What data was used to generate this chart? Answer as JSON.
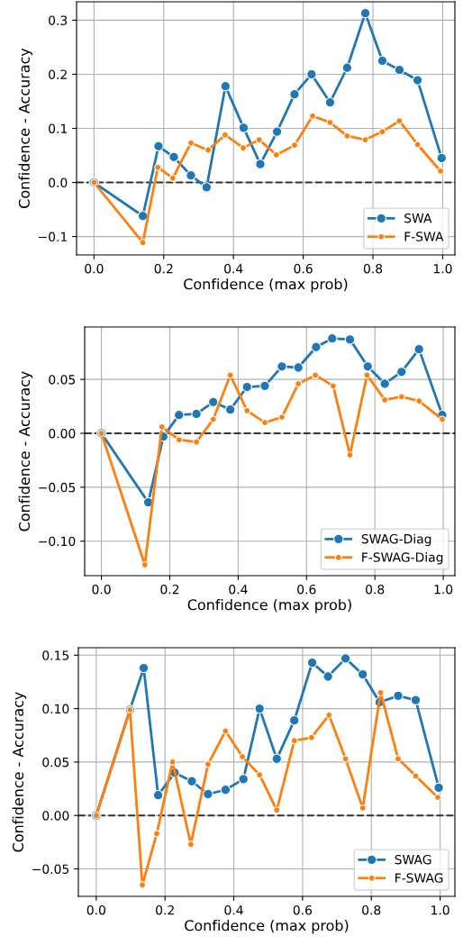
{
  "chart_data": [
    {
      "type": "line",
      "xlabel": "Confidence (max prob)",
      "ylabel": "Confidence - Accuracy",
      "xlim": [
        -0.05,
        1.035
      ],
      "ylim": [
        -0.134,
        0.334
      ],
      "xticks": [
        {
          "value": 0,
          "label": "0.0"
        },
        {
          "value": 0.2,
          "label": "0.2"
        },
        {
          "value": 0.4,
          "label": "0.4"
        },
        {
          "value": 0.6,
          "label": "0.6"
        },
        {
          "value": 0.8,
          "label": "0.8"
        },
        {
          "value": 1,
          "label": "1.0"
        }
      ],
      "yticks": [
        {
          "value": -0.1,
          "label": "−0.1"
        },
        {
          "value": 0,
          "label": "0.0"
        },
        {
          "value": 0.1,
          "label": "0.1"
        },
        {
          "value": 0.2,
          "label": "0.2"
        },
        {
          "value": 0.3,
          "label": "0.3"
        }
      ],
      "grid": true,
      "legend": "bottom right",
      "marker": "circle",
      "line_style": "solid",
      "ref_lines": [
        {
          "axis": "y",
          "value": 0,
          "color": "#333333",
          "line_style": "dashed"
        }
      ],
      "series": [
        {
          "name": "SWA",
          "color": "#1f77b4",
          "x": [
            0,
            0.14,
            0.185,
            0.229,
            0.278,
            0.323,
            0.377,
            0.429,
            0.477,
            0.525,
            0.575,
            0.624,
            0.677,
            0.726,
            0.778,
            0.827,
            0.876,
            0.928,
            0.997
          ],
          "values": [
            0,
            -0.062,
            0.067,
            0.047,
            0.013,
            -0.009,
            0.178,
            0.101,
            0.034,
            0.094,
            0.163,
            0.2,
            0.148,
            0.212,
            0.313,
            0.225,
            0.208,
            0.189,
            0.045
          ]
        },
        {
          "name": "F-SWA",
          "color": "#ff7f0e",
          "x": [
            0,
            0.14,
            0.183,
            0.226,
            0.278,
            0.327,
            0.376,
            0.428,
            0.474,
            0.523,
            0.575,
            0.627,
            0.677,
            0.726,
            0.778,
            0.827,
            0.876,
            0.928,
            0.994
          ],
          "values": [
            0,
            -0.111,
            0.028,
            0.008,
            0.073,
            0.06,
            0.088,
            0.064,
            0.079,
            0.051,
            0.069,
            0.123,
            0.111,
            0.086,
            0.079,
            0.094,
            0.114,
            0.07,
            0.021
          ]
        }
      ]
    },
    {
      "type": "line",
      "xlabel": "Confidence (max prob)",
      "ylabel": "Confidence - Accuracy",
      "xlim": [
        -0.049,
        1.034
      ],
      "ylim": [
        -0.132,
        0.0986
      ],
      "xticks": [
        {
          "value": 0,
          "label": "0.0"
        },
        {
          "value": 0.2,
          "label": "0.2"
        },
        {
          "value": 0.4,
          "label": "0.4"
        },
        {
          "value": 0.6,
          "label": "0.6"
        },
        {
          "value": 0.8,
          "label": "0.8"
        },
        {
          "value": 1,
          "label": "1.0"
        }
      ],
      "yticks": [
        {
          "value": -0.1,
          "label": "−0.10"
        },
        {
          "value": -0.05,
          "label": "−0.05"
        },
        {
          "value": 0,
          "label": "0.00"
        },
        {
          "value": 0.05,
          "label": "0.05"
        }
      ],
      "grid": true,
      "legend": "bottom right",
      "marker": "circle",
      "line_style": "solid",
      "ref_lines": [
        {
          "axis": "y",
          "value": 0,
          "color": "#333333",
          "line_style": "dashed"
        }
      ],
      "series": [
        {
          "name": "SWAG-Diag",
          "color": "#1f77b4",
          "x": [
            0,
            0.137,
            0.181,
            0.227,
            0.278,
            0.327,
            0.377,
            0.426,
            0.478,
            0.528,
            0.576,
            0.628,
            0.675,
            0.727,
            0.779,
            0.829,
            0.878,
            0.929,
            0.997
          ],
          "values": [
            0,
            -0.064,
            -0.003,
            0.017,
            0.018,
            0.029,
            0.022,
            0.043,
            0.044,
            0.062,
            0.061,
            0.08,
            0.088,
            0.087,
            0.062,
            0.046,
            0.057,
            0.078,
            0.017
          ]
        },
        {
          "name": "F-SWAG-Diag",
          "color": "#ff7f0e",
          "x": [
            0,
            0.127,
            0.177,
            0.227,
            0.278,
            0.327,
            0.377,
            0.426,
            0.478,
            0.528,
            0.576,
            0.626,
            0.678,
            0.727,
            0.777,
            0.829,
            0.878,
            0.929,
            0.997
          ],
          "values": [
            0,
            -0.122,
            0.006,
            -0.006,
            -0.008,
            0.013,
            0.054,
            0.021,
            0.01,
            0.015,
            0.046,
            0.054,
            0.044,
            -0.02,
            0.054,
            0.031,
            0.034,
            0.03,
            0.013
          ]
        }
      ]
    },
    {
      "type": "line",
      "xlabel": "Confidence (max prob)",
      "ylabel": "Confidence - Accuracy",
      "xlim": [
        -0.052,
        1.043
      ],
      "ylim": [
        -0.0757,
        0.157
      ],
      "xticks": [
        {
          "value": 0,
          "label": "0.0"
        },
        {
          "value": 0.2,
          "label": "0.2"
        },
        {
          "value": 0.4,
          "label": "0.4"
        },
        {
          "value": 0.6,
          "label": "0.6"
        },
        {
          "value": 0.8,
          "label": "0.8"
        },
        {
          "value": 1,
          "label": "1.0"
        }
      ],
      "yticks": [
        {
          "value": -0.05,
          "label": "−0.05"
        },
        {
          "value": 0,
          "label": "0.00"
        },
        {
          "value": 0.05,
          "label": "0.05"
        },
        {
          "value": 0.1,
          "label": "0.10"
        },
        {
          "value": 0.15,
          "label": "0.15"
        }
      ],
      "grid": true,
      "legend": "bottom right",
      "marker": "circle",
      "line_style": "solid",
      "ref_lines": [
        {
          "axis": "y",
          "value": 0,
          "color": "#333333",
          "line_style": "dashed"
        }
      ],
      "series": [
        {
          "name": "SWAG",
          "color": "#1f77b4",
          "x": [
            0,
            0.098,
            0.138,
            0.18,
            0.228,
            0.278,
            0.325,
            0.376,
            0.428,
            0.475,
            0.525,
            0.576,
            0.628,
            0.674,
            0.725,
            0.775,
            0.824,
            0.878,
            0.929,
            0.996
          ],
          "values": [
            0,
            0.099,
            0.138,
            0.019,
            0.04,
            0.032,
            0.02,
            0.024,
            0.034,
            0.1,
            0.053,
            0.089,
            0.143,
            0.13,
            0.147,
            0.132,
            0.106,
            0.112,
            0.108,
            0.026
          ]
        },
        {
          "name": "F-SWAG",
          "color": "#ff7f0e",
          "x": [
            0,
            0.098,
            0.134,
            0.176,
            0.222,
            0.275,
            0.325,
            0.376,
            0.425,
            0.475,
            0.525,
            0.576,
            0.626,
            0.677,
            0.725,
            0.775,
            0.827,
            0.878,
            0.929,
            0.993
          ],
          "values": [
            0,
            0.099,
            -0.065,
            -0.017,
            0.05,
            -0.027,
            0.048,
            0.079,
            0.055,
            0.038,
            0.005,
            0.07,
            0.073,
            0.094,
            0.053,
            0.007,
            0.115,
            0.053,
            0.037,
            0.017
          ]
        }
      ]
    }
  ]
}
